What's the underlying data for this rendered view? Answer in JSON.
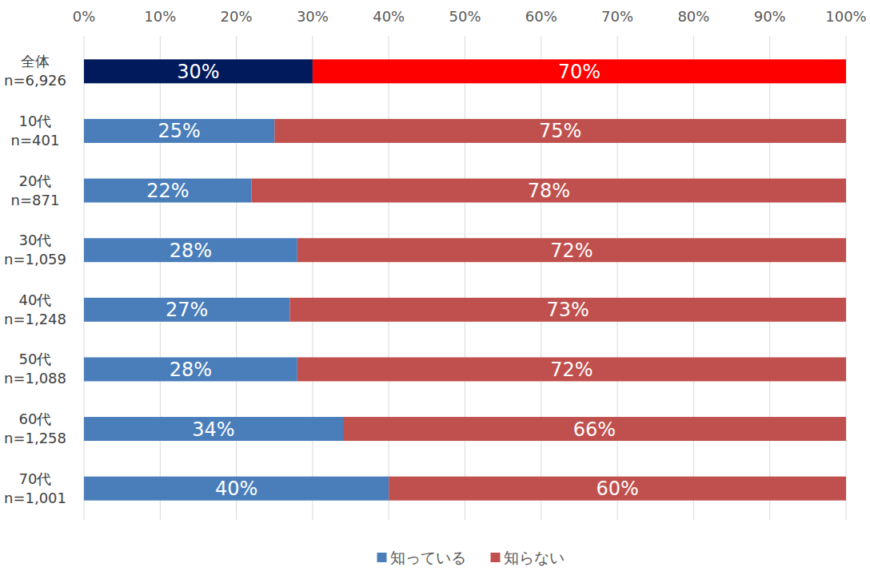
{
  "chart_data": {
    "type": "bar",
    "orientation": "horizontal",
    "stacked": true,
    "data_labels": true,
    "grid": true,
    "legend": "bottom",
    "categories": [
      "全体\nn=6,926",
      "10代\nn=401",
      "20代\nn=871",
      "30代\nn=1,059",
      "40代\nn=1,248",
      "50代\nn=1,088",
      "60代\nn=1,258",
      "70代\nn=1,001"
    ],
    "series": [
      {
        "name": "知っている",
        "color": "#4a7ebb",
        "colors": [
          "#001a5c",
          "#4a7ebb",
          "#4a7ebb",
          "#4a7ebb",
          "#4a7ebb",
          "#4a7ebb",
          "#4a7ebb",
          "#4a7ebb"
        ],
        "values": [
          30,
          25,
          22,
          28,
          27,
          28,
          34,
          40
        ],
        "value_labels": [
          "30%",
          "25%",
          "22%",
          "28%",
          "27%",
          "28%",
          "34%",
          "40%"
        ]
      },
      {
        "name": "知らない",
        "color": "#c0504d",
        "colors": [
          "#ff0000",
          "#c0504d",
          "#c0504d",
          "#c0504d",
          "#c0504d",
          "#c0504d",
          "#c0504d",
          "#c0504d"
        ],
        "values": [
          70,
          75,
          78,
          72,
          73,
          72,
          66,
          60
        ],
        "value_labels": [
          "70%",
          "75%",
          "78%",
          "72%",
          "73%",
          "72%",
          "66%",
          "60%"
        ]
      }
    ],
    "xlim": [
      0,
      100
    ],
    "xticks": [
      {
        "value": 0,
        "label": "0%"
      },
      {
        "value": 10,
        "label": "10%"
      },
      {
        "value": 20,
        "label": "20%"
      },
      {
        "value": 30,
        "label": "30%"
      },
      {
        "value": 40,
        "label": "40%"
      },
      {
        "value": 50,
        "label": "50%"
      },
      {
        "value": 60,
        "label": "60%"
      },
      {
        "value": 70,
        "label": "70%"
      },
      {
        "value": 80,
        "label": "80%"
      },
      {
        "value": 90,
        "label": "90%"
      },
      {
        "value": 100,
        "label": "100%"
      }
    ]
  }
}
